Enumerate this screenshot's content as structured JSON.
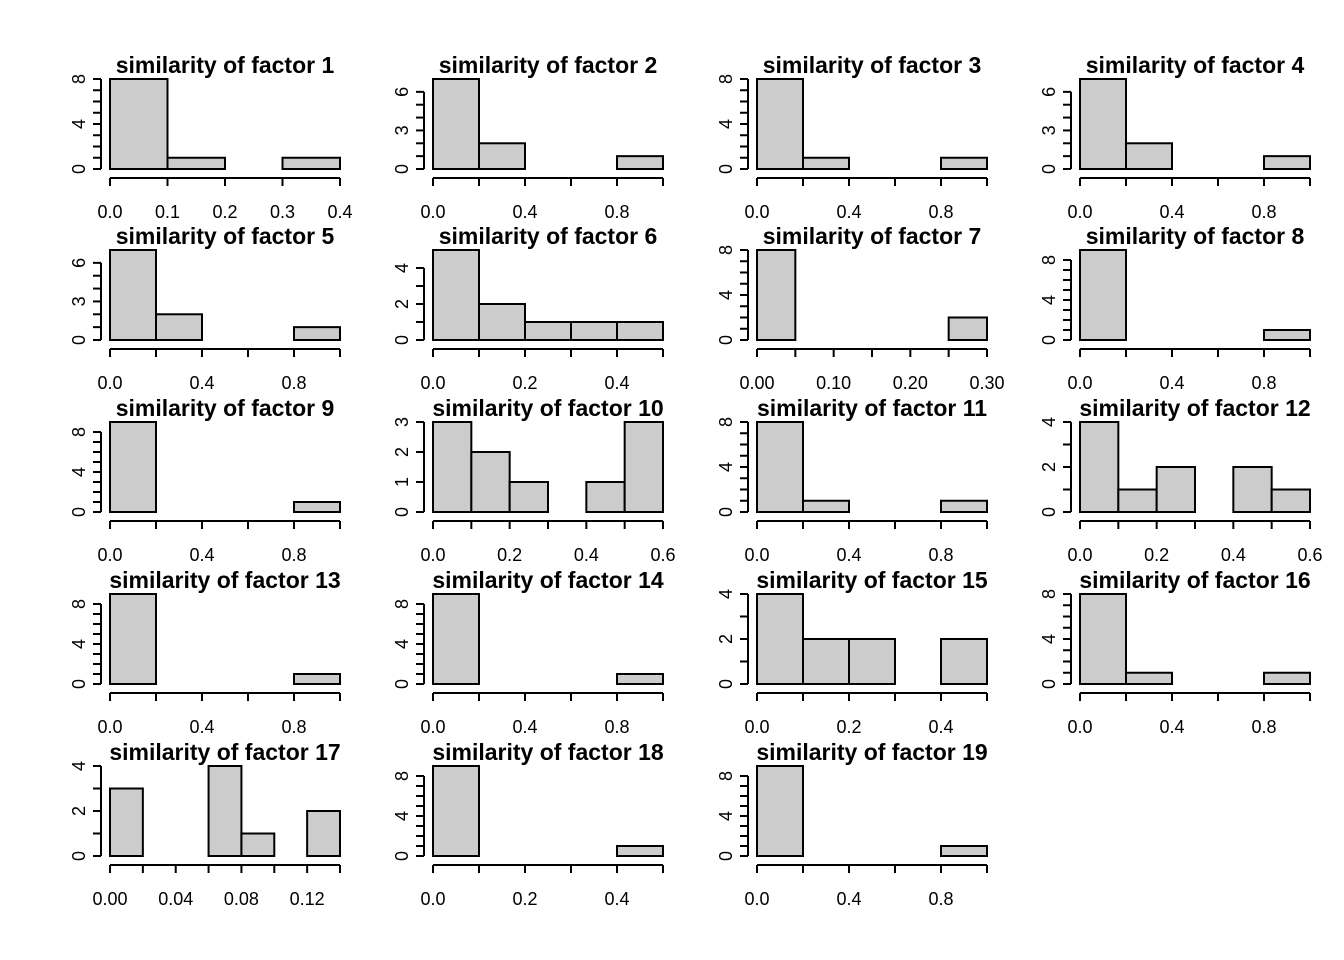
{
  "chart_data": [
    {
      "type": "bar",
      "title": "similarity of factor 1",
      "bins": [
        0,
        0.1,
        0.2,
        0.3,
        0.4
      ],
      "counts": [
        8,
        1,
        0,
        1
      ],
      "xticks": [
        0,
        0.1,
        0.2,
        0.3,
        0.4
      ],
      "xtick_labels": [
        "0.0",
        "0.1",
        "0.2",
        "0.3",
        "0.4"
      ],
      "yticks": [
        0,
        4,
        8
      ],
      "xlim": [
        0,
        0.4
      ],
      "ylim": [
        0,
        8
      ]
    },
    {
      "type": "bar",
      "title": "similarity of factor 2",
      "bins": [
        0,
        0.2,
        0.4,
        0.6,
        0.8,
        1.0
      ],
      "counts": [
        7,
        2,
        0,
        0,
        1
      ],
      "xticks": [
        0,
        0.2,
        0.4,
        0.6,
        0.8,
        1.0
      ],
      "xtick_labels": [
        "0.0",
        "",
        "0.4",
        "",
        "0.8",
        ""
      ],
      "yticks": [
        0,
        3,
        6
      ],
      "xlim": [
        0,
        1.0
      ],
      "ylim": [
        0,
        7
      ]
    },
    {
      "type": "bar",
      "title": "similarity of factor 3",
      "bins": [
        0,
        0.2,
        0.4,
        0.6,
        0.8,
        1.0
      ],
      "counts": [
        8,
        1,
        0,
        0,
        1
      ],
      "xticks": [
        0,
        0.2,
        0.4,
        0.6,
        0.8,
        1.0
      ],
      "xtick_labels": [
        "0.0",
        "",
        "0.4",
        "",
        "0.8",
        ""
      ],
      "yticks": [
        0,
        4,
        8
      ],
      "xlim": [
        0,
        1.0
      ],
      "ylim": [
        0,
        8
      ]
    },
    {
      "type": "bar",
      "title": "similarity of factor 4",
      "bins": [
        0,
        0.2,
        0.4,
        0.6,
        0.8,
        1.0
      ],
      "counts": [
        7,
        2,
        0,
        0,
        1
      ],
      "xticks": [
        0,
        0.2,
        0.4,
        0.6,
        0.8,
        1.0
      ],
      "xtick_labels": [
        "0.0",
        "",
        "0.4",
        "",
        "0.8",
        ""
      ],
      "yticks": [
        0,
        3,
        6
      ],
      "xlim": [
        0,
        1.0
      ],
      "ylim": [
        0,
        7
      ]
    },
    {
      "type": "bar",
      "title": "similarity of factor 5",
      "bins": [
        0,
        0.2,
        0.4,
        0.6,
        0.8,
        1.0
      ],
      "counts": [
        7,
        2,
        0,
        0,
        1
      ],
      "xticks": [
        0,
        0.2,
        0.4,
        0.6,
        0.8,
        1.0
      ],
      "xtick_labels": [
        "0.0",
        "",
        "0.4",
        "",
        "0.8",
        ""
      ],
      "yticks": [
        0,
        3,
        6
      ],
      "xlim": [
        0,
        1.0
      ],
      "ylim": [
        0,
        7
      ]
    },
    {
      "type": "bar",
      "title": "similarity of factor 6",
      "bins": [
        0,
        0.1,
        0.2,
        0.3,
        0.4,
        0.5
      ],
      "counts": [
        5,
        2,
        1,
        1,
        1
      ],
      "xticks": [
        0,
        0.1,
        0.2,
        0.3,
        0.4,
        0.5
      ],
      "xtick_labels": [
        "0.0",
        "",
        "0.2",
        "",
        "0.4",
        ""
      ],
      "yticks": [
        0,
        2,
        4
      ],
      "xlim": [
        0,
        0.5
      ],
      "ylim": [
        0,
        5
      ]
    },
    {
      "type": "bar",
      "title": "similarity of factor 7",
      "bins": [
        0,
        0.05,
        0.1,
        0.15,
        0.2,
        0.25,
        0.3
      ],
      "counts": [
        8,
        0,
        0,
        0,
        0,
        2
      ],
      "xticks": [
        0,
        0.05,
        0.1,
        0.15,
        0.2,
        0.25,
        0.3
      ],
      "xtick_labels": [
        "0.00",
        "",
        "0.10",
        "",
        "0.20",
        "",
        "0.30"
      ],
      "yticks": [
        0,
        4,
        8
      ],
      "xlim": [
        0,
        0.3
      ],
      "ylim": [
        0,
        8
      ]
    },
    {
      "type": "bar",
      "title": "similarity of factor 8",
      "bins": [
        0,
        0.2,
        0.4,
        0.6,
        0.8,
        1.0
      ],
      "counts": [
        9,
        0,
        0,
        0,
        1
      ],
      "xticks": [
        0,
        0.2,
        0.4,
        0.6,
        0.8,
        1.0
      ],
      "xtick_labels": [
        "0.0",
        "",
        "0.4",
        "",
        "0.8",
        ""
      ],
      "yticks": [
        0,
        4,
        8
      ],
      "xlim": [
        0,
        1.0
      ],
      "ylim": [
        0,
        9
      ]
    },
    {
      "type": "bar",
      "title": "similarity of factor 9",
      "bins": [
        0,
        0.2,
        0.4,
        0.6,
        0.8,
        1.0
      ],
      "counts": [
        9,
        0,
        0,
        0,
        1
      ],
      "xticks": [
        0,
        0.2,
        0.4,
        0.6,
        0.8,
        1.0
      ],
      "xtick_labels": [
        "0.0",
        "",
        "0.4",
        "",
        "0.8",
        ""
      ],
      "yticks": [
        0,
        4,
        8
      ],
      "xlim": [
        0,
        1.0
      ],
      "ylim": [
        0,
        9
      ]
    },
    {
      "type": "bar",
      "title": "similarity of factor 10",
      "bins": [
        0,
        0.1,
        0.2,
        0.3,
        0.4,
        0.5,
        0.6
      ],
      "counts": [
        3,
        2,
        1,
        0,
        1,
        3
      ],
      "xticks": [
        0,
        0.1,
        0.2,
        0.3,
        0.4,
        0.5,
        0.6
      ],
      "xtick_labels": [
        "0.0",
        "",
        "0.2",
        "",
        "0.4",
        "",
        "0.6"
      ],
      "yticks": [
        0,
        1,
        2,
        3
      ],
      "xlim": [
        0,
        0.6
      ],
      "ylim": [
        0,
        3
      ]
    },
    {
      "type": "bar",
      "title": "similarity of factor 11",
      "bins": [
        0,
        0.2,
        0.4,
        0.6,
        0.8,
        1.0
      ],
      "counts": [
        8,
        1,
        0,
        0,
        1
      ],
      "xticks": [
        0,
        0.2,
        0.4,
        0.6,
        0.8,
        1.0
      ],
      "xtick_labels": [
        "0.0",
        "",
        "0.4",
        "",
        "0.8",
        ""
      ],
      "yticks": [
        0,
        4,
        8
      ],
      "xlim": [
        0,
        1.0
      ],
      "ylim": [
        0,
        8
      ]
    },
    {
      "type": "bar",
      "title": "similarity of factor 12",
      "bins": [
        0,
        0.1,
        0.2,
        0.3,
        0.4,
        0.5,
        0.6
      ],
      "counts": [
        4,
        1,
        2,
        0,
        2,
        1
      ],
      "xticks": [
        0,
        0.1,
        0.2,
        0.3,
        0.4,
        0.5,
        0.6
      ],
      "xtick_labels": [
        "0.0",
        "",
        "0.2",
        "",
        "0.4",
        "",
        "0.6"
      ],
      "yticks": [
        0,
        2,
        4
      ],
      "xlim": [
        0,
        0.6
      ],
      "ylim": [
        0,
        4
      ]
    },
    {
      "type": "bar",
      "title": "similarity of factor 13",
      "bins": [
        0,
        0.2,
        0.4,
        0.6,
        0.8,
        1.0
      ],
      "counts": [
        9,
        0,
        0,
        0,
        1
      ],
      "xticks": [
        0,
        0.2,
        0.4,
        0.6,
        0.8,
        1.0
      ],
      "xtick_labels": [
        "0.0",
        "",
        "0.4",
        "",
        "0.8",
        ""
      ],
      "yticks": [
        0,
        4,
        8
      ],
      "xlim": [
        0,
        1.0
      ],
      "ylim": [
        0,
        9
      ]
    },
    {
      "type": "bar",
      "title": "similarity of factor 14",
      "bins": [
        0,
        0.2,
        0.4,
        0.6,
        0.8,
        1.0
      ],
      "counts": [
        9,
        0,
        0,
        0,
        1
      ],
      "xticks": [
        0,
        0.2,
        0.4,
        0.6,
        0.8,
        1.0
      ],
      "xtick_labels": [
        "0.0",
        "",
        "0.4",
        "",
        "0.8",
        ""
      ],
      "yticks": [
        0,
        4,
        8
      ],
      "xlim": [
        0,
        1.0
      ],
      "ylim": [
        0,
        9
      ]
    },
    {
      "type": "bar",
      "title": "similarity of factor 15",
      "bins": [
        0,
        0.1,
        0.2,
        0.3,
        0.4,
        0.5
      ],
      "counts": [
        4,
        2,
        2,
        0,
        2
      ],
      "xticks": [
        0,
        0.1,
        0.2,
        0.3,
        0.4,
        0.5
      ],
      "xtick_labels": [
        "0.0",
        "",
        "0.2",
        "",
        "0.4",
        ""
      ],
      "yticks": [
        0,
        2,
        4
      ],
      "xlim": [
        0,
        0.5
      ],
      "ylim": [
        0,
        4
      ]
    },
    {
      "type": "bar",
      "title": "similarity of factor 16",
      "bins": [
        0,
        0.2,
        0.4,
        0.6,
        0.8,
        1.0
      ],
      "counts": [
        8,
        1,
        0,
        0,
        1
      ],
      "xticks": [
        0,
        0.2,
        0.4,
        0.6,
        0.8,
        1.0
      ],
      "xtick_labels": [
        "0.0",
        "",
        "0.4",
        "",
        "0.8",
        ""
      ],
      "yticks": [
        0,
        4,
        8
      ],
      "xlim": [
        0,
        1.0
      ],
      "ylim": [
        0,
        8
      ]
    },
    {
      "type": "bar",
      "title": "similarity of factor 17",
      "bins": [
        0,
        0.02,
        0.04,
        0.06,
        0.08,
        0.1,
        0.12,
        0.14
      ],
      "counts": [
        3,
        0,
        0,
        4,
        1,
        0,
        2
      ],
      "xticks": [
        0,
        0.02,
        0.04,
        0.06,
        0.08,
        0.1,
        0.12,
        0.14
      ],
      "xtick_labels": [
        "0.00",
        "",
        "0.04",
        "",
        "0.08",
        "",
        "0.12",
        ""
      ],
      "yticks": [
        0,
        2,
        4
      ],
      "xlim": [
        0,
        0.14
      ],
      "ylim": [
        0,
        4
      ]
    },
    {
      "type": "bar",
      "title": "similarity of factor 18",
      "bins": [
        0,
        0.1,
        0.2,
        0.3,
        0.4,
        0.5
      ],
      "counts": [
        9,
        0,
        0,
        0,
        1
      ],
      "xticks": [
        0,
        0.1,
        0.2,
        0.3,
        0.4,
        0.5
      ],
      "xtick_labels": [
        "0.0",
        "",
        "0.2",
        "",
        "0.4",
        ""
      ],
      "yticks": [
        0,
        4,
        8
      ],
      "xlim": [
        0,
        0.5
      ],
      "ylim": [
        0,
        9
      ]
    },
    {
      "type": "bar",
      "title": "similarity of factor 19",
      "bins": [
        0,
        0.2,
        0.4,
        0.6,
        0.8,
        1.0
      ],
      "counts": [
        9,
        0,
        0,
        0,
        1
      ],
      "xticks": [
        0,
        0.2,
        0.4,
        0.6,
        0.8,
        1.0
      ],
      "xtick_labels": [
        "0.0",
        "",
        "0.4",
        "",
        "0.8",
        ""
      ],
      "yticks": [
        0,
        4,
        8
      ],
      "xlim": [
        0,
        1.0
      ],
      "ylim": [
        0,
        9
      ]
    }
  ]
}
